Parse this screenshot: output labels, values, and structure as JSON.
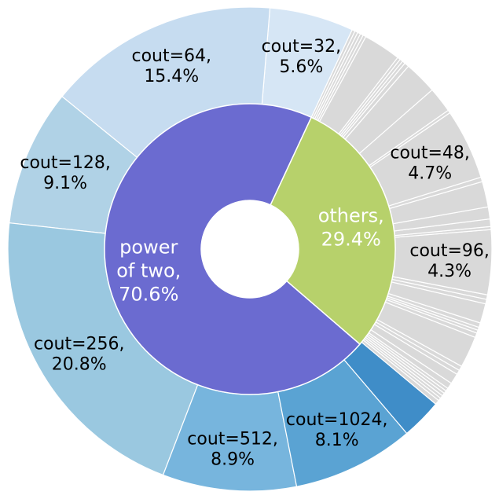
{
  "chart_data": {
    "type": "pie",
    "title": "",
    "inner_ring": [
      {
        "line1": "power",
        "line2": "of two,",
        "line3": "70.6%",
        "percent": 70.6,
        "color": "#6b6bd0"
      },
      {
        "line1": "others,",
        "line2": "29.4%",
        "percent": 29.4,
        "color": "#b7d16b"
      }
    ],
    "outer_power_of_two": [
      {
        "line1": "cout=32,",
        "line2": "5.6%",
        "percent": 5.6,
        "color": "#d6e6f5"
      },
      {
        "line1": "cout=64,",
        "line2": "15.4%",
        "percent": 15.4,
        "color": "#c6dcf0"
      },
      {
        "line1": "cout=128,",
        "line2": "9.1%",
        "percent": 9.1,
        "color": "#b0d2e6"
      },
      {
        "line1": "cout=256,",
        "line2": "20.8%",
        "percent": 20.8,
        "color": "#9ac8e0"
      },
      {
        "line1": "cout=512,",
        "line2": "8.9%",
        "percent": 8.9,
        "color": "#77b5dd"
      },
      {
        "line1": "cout=1024,",
        "line2": "8.1%",
        "percent": 8.1,
        "color": "#5aa3d3"
      },
      {
        "line1": "",
        "line2": "",
        "percent": 2.7,
        "color": "#3f8dc8"
      }
    ],
    "outer_others": [
      {
        "line1": "",
        "line2": "",
        "percent": 0.3
      },
      {
        "line1": "",
        "line2": "",
        "percent": 0.2
      },
      {
        "line1": "",
        "line2": "",
        "percent": 0.2
      },
      {
        "line1": "",
        "line2": "",
        "percent": 0.2
      },
      {
        "line1": "",
        "line2": "",
        "percent": 0.2
      },
      {
        "line1": "",
        "line2": "",
        "percent": 0.2
      },
      {
        "line1": "",
        "line2": "",
        "percent": 0.4
      },
      {
        "line1": "",
        "line2": "",
        "percent": 0.7
      },
      {
        "line1": "",
        "line2": "",
        "percent": 0.3
      },
      {
        "line1": "",
        "line2": "",
        "percent": 0.3
      },
      {
        "line1": "",
        "line2": "",
        "percent": 2.1
      },
      {
        "line1": "",
        "line2": "",
        "percent": 0.3
      },
      {
        "line1": "",
        "line2": "",
        "percent": 0.2
      },
      {
        "line1": "",
        "line2": "",
        "percent": 0.2
      },
      {
        "line1": "",
        "line2": "",
        "percent": 0.3
      },
      {
        "line1": "",
        "line2": "",
        "percent": 1.3
      },
      {
        "line1": "",
        "line2": "",
        "percent": 0.3
      },
      {
        "line1": "",
        "line2": "",
        "percent": 0.3
      },
      {
        "line1": "cout=96,",
        "line2": "4.3%",
        "percent": 4.3
      },
      {
        "line1": "",
        "line2": "",
        "percent": 0.2
      },
      {
        "line1": "",
        "line2": "",
        "percent": 0.5
      },
      {
        "line1": "",
        "line2": "",
        "percent": 0.8
      },
      {
        "line1": "",
        "line2": "",
        "percent": 1.7
      },
      {
        "line1": "",
        "line2": "",
        "percent": 0.3
      },
      {
        "line1": "cout=48,",
        "line2": "4.7%",
        "percent": 4.7
      },
      {
        "line1": "",
        "line2": "",
        "percent": 0.2
      },
      {
        "line1": "",
        "line2": "",
        "percent": 1.7
      },
      {
        "line1": "",
        "line2": "",
        "percent": 2.2
      },
      {
        "line1": "",
        "line2": "",
        "percent": 0.3
      },
      {
        "line1": "",
        "line2": "",
        "percent": 0.2
      },
      {
        "line1": "",
        "line2": "",
        "percent": 0.2
      },
      {
        "line1": "",
        "line2": "",
        "percent": 0.2
      },
      {
        "line1": "",
        "line2": "",
        "percent": 2.5
      },
      {
        "line1": "",
        "line2": "",
        "percent": 0.2
      },
      {
        "line1": "",
        "line2": "",
        "percent": 0.2
      },
      {
        "line1": "",
        "line2": "",
        "percent": 0.2
      },
      {
        "line1": "",
        "line2": "",
        "percent": 0.2
      },
      {
        "line1": "",
        "line2": "",
        "percent": 0.2
      }
    ],
    "others_color": "#d9d9d9",
    "start_angle_deg": 65,
    "direction": "counterclockwise",
    "legend": "none"
  }
}
